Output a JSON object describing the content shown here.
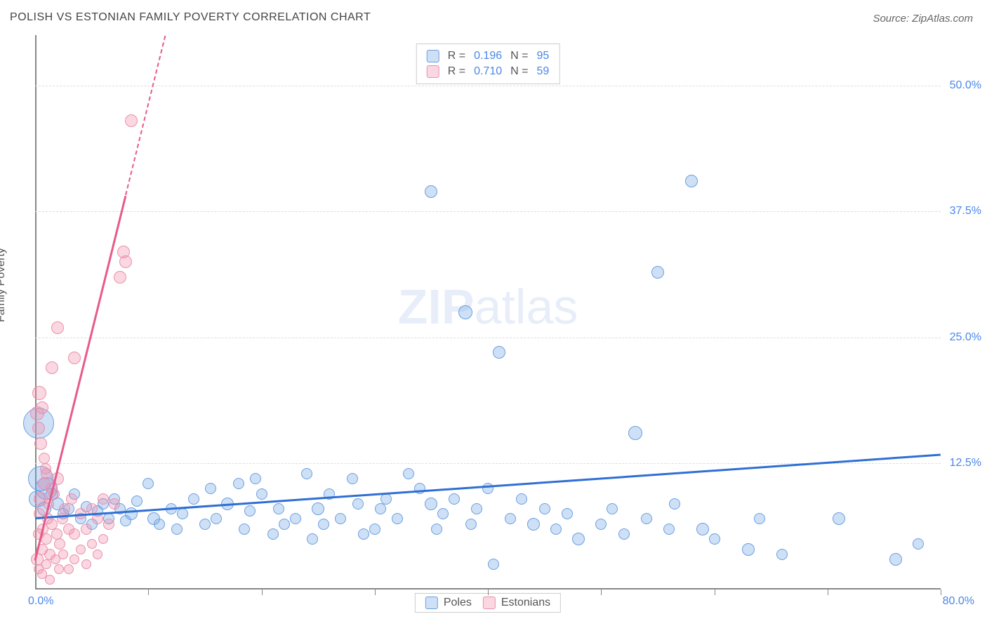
{
  "title": "POLISH VS ESTONIAN FAMILY POVERTY CORRELATION CHART",
  "source": "Source: ZipAtlas.com",
  "ylabel": "Family Poverty",
  "watermark": {
    "bold": "ZIP",
    "rest": "atlas"
  },
  "chart": {
    "type": "scatter",
    "background_color": "#ffffff",
    "grid_color": "#dddddd",
    "axis_color": "#888888",
    "xlim": [
      0,
      80
    ],
    "ylim": [
      0,
      55
    ],
    "y_ticks": [
      {
        "v": 12.5,
        "label": "12.5%"
      },
      {
        "v": 25.0,
        "label": "25.0%"
      },
      {
        "v": 37.5,
        "label": "37.5%"
      },
      {
        "v": 50.0,
        "label": "50.0%"
      }
    ],
    "x_ticks": [
      10,
      20,
      30,
      40,
      50,
      60,
      70,
      80
    ],
    "x_min_label": "0.0%",
    "x_max_label": "80.0%",
    "series": [
      {
        "id": "poles",
        "label": "Poles",
        "fill": "rgba(116, 166, 228, 0.35)",
        "stroke": "#6b9fe0",
        "trend_color": "#2f6fd4",
        "trend_dash_color": "#2f6fd4",
        "trend": {
          "x1": 0,
          "y1": 7.2,
          "x2": 80,
          "y2": 13.5
        },
        "R": "0.196",
        "N": "95",
        "points": [
          {
            "x": 0.3,
            "y": 16.5,
            "r": 22
          },
          {
            "x": 0.5,
            "y": 11.0,
            "r": 18
          },
          {
            "x": 1.0,
            "y": 10.0,
            "r": 16
          },
          {
            "x": 0.2,
            "y": 9.0,
            "r": 12
          },
          {
            "x": 0.8,
            "y": 8.0,
            "r": 10
          },
          {
            "x": 1.5,
            "y": 9.5,
            "r": 9
          },
          {
            "x": 2.0,
            "y": 8.5,
            "r": 9
          },
          {
            "x": 2.5,
            "y": 7.5,
            "r": 8
          },
          {
            "x": 3.0,
            "y": 8.0,
            "r": 8
          },
          {
            "x": 3.5,
            "y": 9.5,
            "r": 8
          },
          {
            "x": 4.0,
            "y": 7.0,
            "r": 8
          },
          {
            "x": 4.5,
            "y": 8.2,
            "r": 8
          },
          {
            "x": 5.0,
            "y": 6.5,
            "r": 8
          },
          {
            "x": 5.5,
            "y": 7.8,
            "r": 8
          },
          {
            "x": 6.0,
            "y": 8.5,
            "r": 8
          },
          {
            "x": 6.5,
            "y": 7.0,
            "r": 8
          },
          {
            "x": 7.0,
            "y": 9.0,
            "r": 8
          },
          {
            "x": 7.5,
            "y": 8.0,
            "r": 8
          },
          {
            "x": 8.0,
            "y": 6.8,
            "r": 8
          },
          {
            "x": 8.5,
            "y": 7.5,
            "r": 9
          },
          {
            "x": 9.0,
            "y": 8.8,
            "r": 8
          },
          {
            "x": 10.0,
            "y": 10.5,
            "r": 8
          },
          {
            "x": 10.5,
            "y": 7.0,
            "r": 9
          },
          {
            "x": 11.0,
            "y": 6.5,
            "r": 8
          },
          {
            "x": 12.0,
            "y": 8.0,
            "r": 8
          },
          {
            "x": 12.5,
            "y": 6.0,
            "r": 8
          },
          {
            "x": 13.0,
            "y": 7.5,
            "r": 8
          },
          {
            "x": 14.0,
            "y": 9.0,
            "r": 8
          },
          {
            "x": 15.0,
            "y": 6.5,
            "r": 8
          },
          {
            "x": 15.5,
            "y": 10.0,
            "r": 8
          },
          {
            "x": 16.0,
            "y": 7.0,
            "r": 8
          },
          {
            "x": 17.0,
            "y": 8.5,
            "r": 9
          },
          {
            "x": 18.0,
            "y": 10.5,
            "r": 8
          },
          {
            "x": 18.5,
            "y": 6.0,
            "r": 8
          },
          {
            "x": 19.0,
            "y": 7.8,
            "r": 8
          },
          {
            "x": 19.5,
            "y": 11.0,
            "r": 8
          },
          {
            "x": 20.0,
            "y": 9.5,
            "r": 8
          },
          {
            "x": 21.0,
            "y": 5.5,
            "r": 8
          },
          {
            "x": 21.5,
            "y": 8.0,
            "r": 8
          },
          {
            "x": 22.0,
            "y": 6.5,
            "r": 8
          },
          {
            "x": 23.0,
            "y": 7.0,
            "r": 8
          },
          {
            "x": 24.0,
            "y": 11.5,
            "r": 8
          },
          {
            "x": 24.5,
            "y": 5.0,
            "r": 8
          },
          {
            "x": 25.0,
            "y": 8.0,
            "r": 9
          },
          {
            "x": 25.5,
            "y": 6.5,
            "r": 8
          },
          {
            "x": 26.0,
            "y": 9.5,
            "r": 8
          },
          {
            "x": 27.0,
            "y": 7.0,
            "r": 8
          },
          {
            "x": 28.0,
            "y": 11.0,
            "r": 8
          },
          {
            "x": 28.5,
            "y": 8.5,
            "r": 8
          },
          {
            "x": 29.0,
            "y": 5.5,
            "r": 8
          },
          {
            "x": 30.0,
            "y": 6.0,
            "r": 8
          },
          {
            "x": 30.5,
            "y": 8.0,
            "r": 8
          },
          {
            "x": 31.0,
            "y": 9.0,
            "r": 8
          },
          {
            "x": 32.0,
            "y": 7.0,
            "r": 8
          },
          {
            "x": 33.0,
            "y": 11.5,
            "r": 8
          },
          {
            "x": 34.0,
            "y": 10.0,
            "r": 8
          },
          {
            "x": 35.0,
            "y": 8.5,
            "r": 9
          },
          {
            "x": 35.5,
            "y": 6.0,
            "r": 8
          },
          {
            "x": 36.0,
            "y": 7.5,
            "r": 8
          },
          {
            "x": 37.0,
            "y": 9.0,
            "r": 8
          },
          {
            "x": 38.0,
            "y": 27.5,
            "r": 10
          },
          {
            "x": 38.5,
            "y": 6.5,
            "r": 8
          },
          {
            "x": 39.0,
            "y": 8.0,
            "r": 8
          },
          {
            "x": 40.0,
            "y": 10.0,
            "r": 8
          },
          {
            "x": 41.0,
            "y": 23.5,
            "r": 9
          },
          {
            "x": 35.0,
            "y": 39.5,
            "r": 9
          },
          {
            "x": 42.0,
            "y": 7.0,
            "r": 8
          },
          {
            "x": 43.0,
            "y": 9.0,
            "r": 8
          },
          {
            "x": 44.0,
            "y": 6.5,
            "r": 9
          },
          {
            "x": 45.0,
            "y": 8.0,
            "r": 8
          },
          {
            "x": 46.0,
            "y": 6.0,
            "r": 8
          },
          {
            "x": 47.0,
            "y": 7.5,
            "r": 8
          },
          {
            "x": 48.0,
            "y": 5.0,
            "r": 9
          },
          {
            "x": 40.5,
            "y": 2.5,
            "r": 8
          },
          {
            "x": 50.0,
            "y": 6.5,
            "r": 8
          },
          {
            "x": 51.0,
            "y": 8.0,
            "r": 8
          },
          {
            "x": 52.0,
            "y": 5.5,
            "r": 8
          },
          {
            "x": 53.0,
            "y": 15.5,
            "r": 10
          },
          {
            "x": 54.0,
            "y": 7.0,
            "r": 8
          },
          {
            "x": 55.0,
            "y": 31.5,
            "r": 9
          },
          {
            "x": 56.0,
            "y": 6.0,
            "r": 8
          },
          {
            "x": 56.5,
            "y": 8.5,
            "r": 8
          },
          {
            "x": 58.0,
            "y": 40.5,
            "r": 9
          },
          {
            "x": 59.0,
            "y": 6.0,
            "r": 9
          },
          {
            "x": 60.0,
            "y": 5.0,
            "r": 8
          },
          {
            "x": 63.0,
            "y": 4.0,
            "r": 9
          },
          {
            "x": 64.0,
            "y": 7.0,
            "r": 8
          },
          {
            "x": 66.0,
            "y": 3.5,
            "r": 8
          },
          {
            "x": 71.0,
            "y": 7.0,
            "r": 9
          },
          {
            "x": 76.0,
            "y": 3.0,
            "r": 9
          },
          {
            "x": 78.0,
            "y": 4.5,
            "r": 8
          }
        ]
      },
      {
        "id": "estonians",
        "label": "Estonians",
        "fill": "rgba(240, 140, 170, 0.35)",
        "stroke": "#e991ae",
        "trend_color": "#e75a8a",
        "trend_dash_color": "#e75a8a",
        "trend": {
          "x1": 0,
          "y1": 3.0,
          "x2": 11.5,
          "y2": 55.0
        },
        "trend_solid_end_x": 8.0,
        "R": "0.710",
        "N": "59",
        "points": [
          {
            "x": 0.2,
            "y": 3.0,
            "r": 9
          },
          {
            "x": 0.3,
            "y": 5.5,
            "r": 8
          },
          {
            "x": 0.4,
            "y": 7.5,
            "r": 8
          },
          {
            "x": 0.5,
            "y": 9.0,
            "r": 10
          },
          {
            "x": 0.6,
            "y": 4.0,
            "r": 8
          },
          {
            "x": 0.7,
            "y": 6.0,
            "r": 8
          },
          {
            "x": 0.8,
            "y": 10.5,
            "r": 9
          },
          {
            "x": 0.9,
            "y": 12.0,
            "r": 8
          },
          {
            "x": 1.0,
            "y": 5.0,
            "r": 8
          },
          {
            "x": 1.1,
            "y": 7.0,
            "r": 8
          },
          {
            "x": 1.2,
            "y": 8.5,
            "r": 8
          },
          {
            "x": 1.3,
            "y": 3.5,
            "r": 8
          },
          {
            "x": 1.5,
            "y": 6.5,
            "r": 8
          },
          {
            "x": 1.7,
            "y": 9.5,
            "r": 8
          },
          {
            "x": 1.9,
            "y": 5.5,
            "r": 8
          },
          {
            "x": 2.0,
            "y": 11.0,
            "r": 9
          },
          {
            "x": 2.2,
            "y": 4.5,
            "r": 8
          },
          {
            "x": 2.4,
            "y": 7.0,
            "r": 8
          },
          {
            "x": 2.6,
            "y": 8.0,
            "r": 8
          },
          {
            "x": 3.0,
            "y": 6.0,
            "r": 8
          },
          {
            "x": 3.2,
            "y": 9.0,
            "r": 8
          },
          {
            "x": 3.5,
            "y": 5.5,
            "r": 8
          },
          {
            "x": 4.0,
            "y": 7.5,
            "r": 8
          },
          {
            "x": 4.5,
            "y": 6.0,
            "r": 8
          },
          {
            "x": 5.0,
            "y": 8.0,
            "r": 8
          },
          {
            "x": 5.5,
            "y": 7.0,
            "r": 8
          },
          {
            "x": 6.0,
            "y": 9.0,
            "r": 8
          },
          {
            "x": 6.5,
            "y": 6.5,
            "r": 8
          },
          {
            "x": 7.0,
            "y": 8.5,
            "r": 8
          },
          {
            "x": 0.5,
            "y": 14.5,
            "r": 9
          },
          {
            "x": 0.6,
            "y": 18.0,
            "r": 9
          },
          {
            "x": 0.4,
            "y": 19.5,
            "r": 10
          },
          {
            "x": 1.5,
            "y": 22.0,
            "r": 9
          },
          {
            "x": 3.5,
            "y": 23.0,
            "r": 9
          },
          {
            "x": 2.0,
            "y": 26.0,
            "r": 9
          },
          {
            "x": 7.5,
            "y": 31.0,
            "r": 9
          },
          {
            "x": 8.0,
            "y": 32.5,
            "r": 9
          },
          {
            "x": 7.8,
            "y": 33.5,
            "r": 9
          },
          {
            "x": 8.5,
            "y": 46.5,
            "r": 9
          },
          {
            "x": 0.3,
            "y": 2.0,
            "r": 7
          },
          {
            "x": 0.6,
            "y": 1.5,
            "r": 7
          },
          {
            "x": 1.0,
            "y": 2.5,
            "r": 7
          },
          {
            "x": 1.3,
            "y": 1.0,
            "r": 7
          },
          {
            "x": 1.8,
            "y": 3.0,
            "r": 7
          },
          {
            "x": 2.1,
            "y": 2.0,
            "r": 7
          },
          {
            "x": 2.5,
            "y": 3.5,
            "r": 7
          },
          {
            "x": 3.0,
            "y": 2.0,
            "r": 7
          },
          {
            "x": 3.5,
            "y": 3.0,
            "r": 7
          },
          {
            "x": 4.0,
            "y": 4.0,
            "r": 7
          },
          {
            "x": 4.5,
            "y": 2.5,
            "r": 7
          },
          {
            "x": 5.0,
            "y": 4.5,
            "r": 7
          },
          {
            "x": 5.5,
            "y": 3.5,
            "r": 7
          },
          {
            "x": 6.0,
            "y": 5.0,
            "r": 7
          },
          {
            "x": 0.8,
            "y": 13.0,
            "r": 8
          },
          {
            "x": 1.0,
            "y": 11.5,
            "r": 8
          },
          {
            "x": 1.4,
            "y": 10.0,
            "r": 8
          },
          {
            "x": 0.2,
            "y": 17.5,
            "r": 10
          },
          {
            "x": 0.3,
            "y": 16.0,
            "r": 9
          }
        ]
      }
    ],
    "stat_box": {
      "label_color": "#555555",
      "value_color": "#4a86e8"
    }
  },
  "bottom_legend": {
    "items": [
      "Poles",
      "Estonians"
    ]
  }
}
